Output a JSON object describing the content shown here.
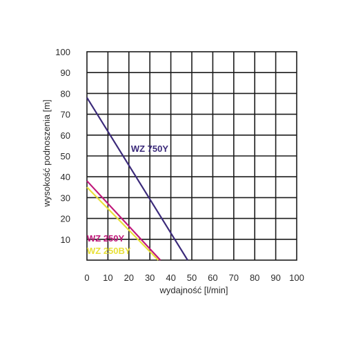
{
  "chart_data": {
    "type": "line",
    "title": "",
    "xlabel": "wydajność [l/min]",
    "ylabel": "wysokość podnoszenia [m]",
    "xlim": [
      0,
      100
    ],
    "ylim": [
      0,
      100
    ],
    "x_ticks": [
      0,
      10,
      20,
      30,
      40,
      50,
      60,
      70,
      80,
      90,
      100
    ],
    "y_ticks": [
      10,
      20,
      30,
      40,
      50,
      60,
      70,
      80,
      90,
      100
    ],
    "grid": true,
    "series": [
      {
        "name": "WZ 750Y",
        "color": "#3b2a7a",
        "points": [
          [
            0,
            78
          ],
          [
            48,
            0
          ]
        ]
      },
      {
        "name": "WZ 250Y",
        "color": "#c0187a",
        "points": [
          [
            0,
            38
          ],
          [
            35,
            0
          ]
        ]
      },
      {
        "name": "WZ 250BY",
        "color": "#e8e03a",
        "points": [
          [
            0,
            35
          ],
          [
            34,
            0
          ]
        ]
      }
    ],
    "annotations": [
      {
        "text": "WZ 750Y",
        "color": "#3b2a7a",
        "x": 21,
        "y": 52
      },
      {
        "text": "WZ 250Y",
        "color": "#c0187a",
        "x": 0,
        "y": 9
      },
      {
        "text": "WZ 250BY",
        "color": "#e8e03a",
        "x": 0,
        "y": 3
      }
    ]
  }
}
